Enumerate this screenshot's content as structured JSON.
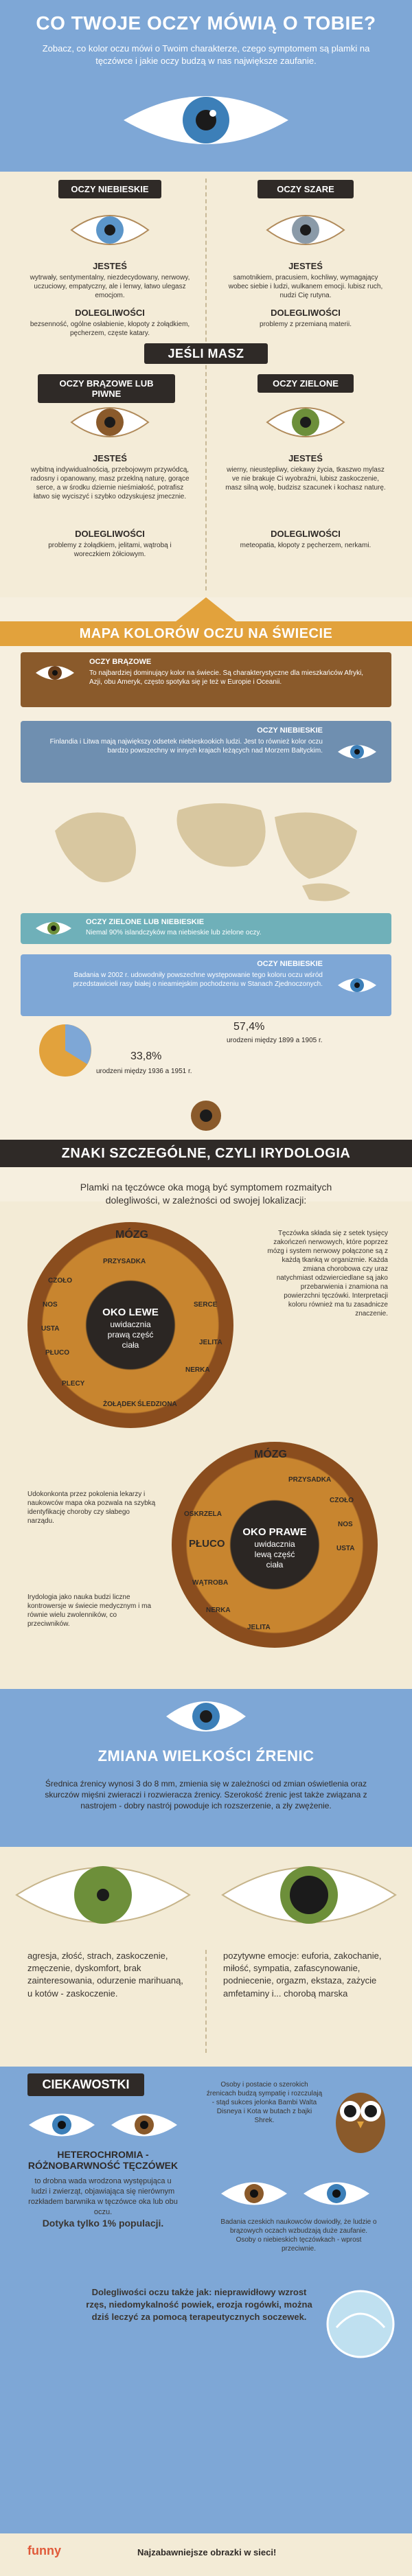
{
  "title": "CO TWOJE OCZY MÓWIĄ O TOBIE?",
  "intro": "Zobacz, co kolor oczu mówi o Twoim charakterze, czego symptomem są plamki na tęczówce i jakie oczy budzą w nas największe zaufanie.",
  "colors": {
    "blue_band": "#7ea7d6",
    "dark": "#2f2a27",
    "brown": "#8a5a2b",
    "green": "#6d8f3a",
    "gray_blue": "#6f8fb0",
    "orange": "#e2a23c"
  },
  "types": [
    {
      "name": "OCZY NIEBIESKIE",
      "label_traits": "JESTEŚ",
      "traits": "wytrwały, sentymentalny, niezdecydowany, nerwowy, uczuciowy, empatyczny, ale i lenwy, łatwo ulegasz emocjom.",
      "label_ailments": "DOLEGLIWOŚCI",
      "ailments": "bezsenność, ogólne osłabienie, kłopoty z żołądkiem, pęcherzem, częste katary."
    },
    {
      "name": "OCZY SZARE",
      "label_traits": "JESTEŚ",
      "traits": "samotnikiem, pracusiem, kochliwy, wymagający wobec siebie i ludzi, wulkanem emocji. lubisz ruch, nudzi Cię rutyna.",
      "label_ailments": "DOLEGLIWOŚCI",
      "ailments": "problemy z przemianą materii."
    },
    {
      "name": "OCZY BRĄZOWE LUB PIWNE",
      "label_traits": "JESTEŚ",
      "traits": "wybitną indywidualnością, przebojowym przywódcą, radosny i opanowany, masz przeklną naturę, gorące serce, a w środku dziernie nieśmiałość, potrafisz łatwo się wyciszyć i szybko odzyskujesz jmecznie.",
      "label_ailments": "DOLEGLIWOŚCI",
      "ailments": "problemy z żołądkiem, jelitami, wątrobą i woreczkiem żółciowym."
    },
    {
      "name": "OCZY ZIELONE",
      "label_traits": "JESTEŚ",
      "traits": "wierny, nieustępliwy, ciekawy życia, tkaszwo mylasz ve nie brakuje Ci wyobraźni, lubisz zaskoczenie, masz silną wolę, budzisz szacunek i kochasz naturę.",
      "label_ailments": "DOLEGLIWOŚCI",
      "ailments": "meteopatia, kłopoty z pęcherzem, nerkami."
    }
  ],
  "jesli_masz": "JEŚLI MASZ",
  "map": {
    "title": "MAPA KOLORÓW OCZU NA ŚWIECIE",
    "rows": [
      {
        "title": "OCZY BRĄZOWE",
        "text": "To najbardziej dominujący kolor na świecie. Są charakterystyczne dla mieszkańców Afryki, Azji, obu Ameryk, często spotyka się je też w Europie i Oceanii."
      },
      {
        "title": "OCZY NIEBIESKIE",
        "text": "Finlandia i Litwa mają największy odsetek niebieskookich ludzi. Jest to również kolor oczu bardzo powszechny w innych krajach leżących nad Morzem Bałtyckim."
      },
      {
        "title": "OCZY ZIELONE LUB NIEBIESKIE",
        "text": "Niemal 90% islandczyków ma niebieskie lub zielone oczy."
      },
      {
        "title": "OCZY NIEBIESKIE",
        "text": "Badania w 2002 r. udowodniły powszechne występowanie tego koloru oczu wśród przedstawicieli rasy białej o nieamiejskim pochodzeniu w Stanach Zjednoczonych."
      }
    ],
    "pct_a": "57,4%",
    "pct_b": "33,8%",
    "label_a": "urodzeni między 1899 a 1905 r.",
    "label_b": "urodzeni między 1936 a 1951 r."
  },
  "iridology": {
    "title": "ZNAKI SZCZEGÓLNE, CZYLI IRYDOLOGIA",
    "intro": "Plamki na tęczówce oka mogą być symptomem rozmaitych dolegliwości, w zależności od swojej lokalizacji:",
    "left_center": [
      "OKO LEWE",
      "uwidacznia",
      "prawą część",
      "ciała"
    ],
    "right_center": [
      "OKO PRAWE",
      "uwidacznia",
      "lewą część",
      "ciała"
    ],
    "left_organs": [
      "MÓZG",
      "PRZYSADKA",
      "CZOŁO",
      "NOS",
      "USTA",
      "PŁUCO",
      "PLECY",
      "SERCE",
      "JELITA",
      "NERKA",
      "ŚLEDZIONA",
      "ŻOŁĄDEK"
    ],
    "right_organs": [
      "MÓZG",
      "PRZYSADKA",
      "PŁUCO",
      "OSKRZELA",
      "WĄTROBA",
      "NERKA",
      "JELITA",
      "USTA",
      "NOS",
      "CZOŁO"
    ],
    "note1": "Tęczówka składa się z setek tysięcy zakończeń nerwowych, które poprzez mózg i system nerwowy połączone są z każdą tkanką w organizmie. Każda zmiana chorobowa czy uraz natychmiast odzwierciedlane są jako przebarwienia i znamiona na powierzchni tęczówki. Interpretacji koloru również ma tu zasadnicze znaczenie.",
    "note2": "Udokonkonta przez pokolenia lekarzy i naukowców mapa oka pozwala na szybką identyfikację choroby czy słabego narządu.",
    "note3": "Irydologia jako nauka budzi liczne kontrowersje w świecie medycznym i ma równie wielu zwolenników, co przeciwników."
  },
  "pupils": {
    "title": "ZMIANA WIELKOŚCI ŹRENIC",
    "intro": "Średnica źrenicy wynosi 3 do 8 mm, zmienia się w zależności od zmian oświetlenia oraz skurczów mięśni zwieraczi i rozwieracza źrenicy. Szerokość źrenic jest także związana z nastrojem - dobry nastrój powoduje ich rozszerzenie, a zły zwężenie.",
    "left": "agresja, złość, strach, zaskoczenie, zmęczenie, dyskomfort, brak zainteresowania, odurzenie marihuaną, u kotów - zaskoczenie.",
    "right": "pozytywne emocje: euforia, zakochanie, miłość, sympatia, zafascynowanie, podniecenie, orgazm, ekstaza, zażycie amfetaminy i... chorobą marska"
  },
  "trivia": {
    "title": "CIEKAWOSTKI",
    "heterochromia_title": "HETEROCHROMIA - RÓŻNOBARWNOŚĆ TĘCZÓWEK",
    "heterochromia_text": "to drobna wada wrodzona występująca u ludzi i zwierząt, objawiająca się nierównym rozkładem barwnika w tęczówce oka lub obu oczu.",
    "heterochromia_stat": "Dotyka tylko 1% populacji.",
    "owl_text": "Osoby i postacie o szerokich źrenicach budzą sympatię i rozczulają - stąd sukces jelonka Bambi Walta Disneya i Kota w butach z bajki Shrek.",
    "study_text": "Badania czeskich naukowców dowiodły, że ludzie o brązowych oczach wzbudzają duże zaufanie. Osoby o niebieskich tęczówkach - wprost przeciwnie.",
    "ailments": "Dolegliwości oczu także jak: nieprawidłowy wzrost rzęs, niedomykalność powiek, erozja rogówki, można dziś leczyć za pomocą terapeutycznych soczewek."
  },
  "footer": {
    "brand": "funny",
    "slogan": "Najzabawniejsze obrazki w sieci!"
  }
}
